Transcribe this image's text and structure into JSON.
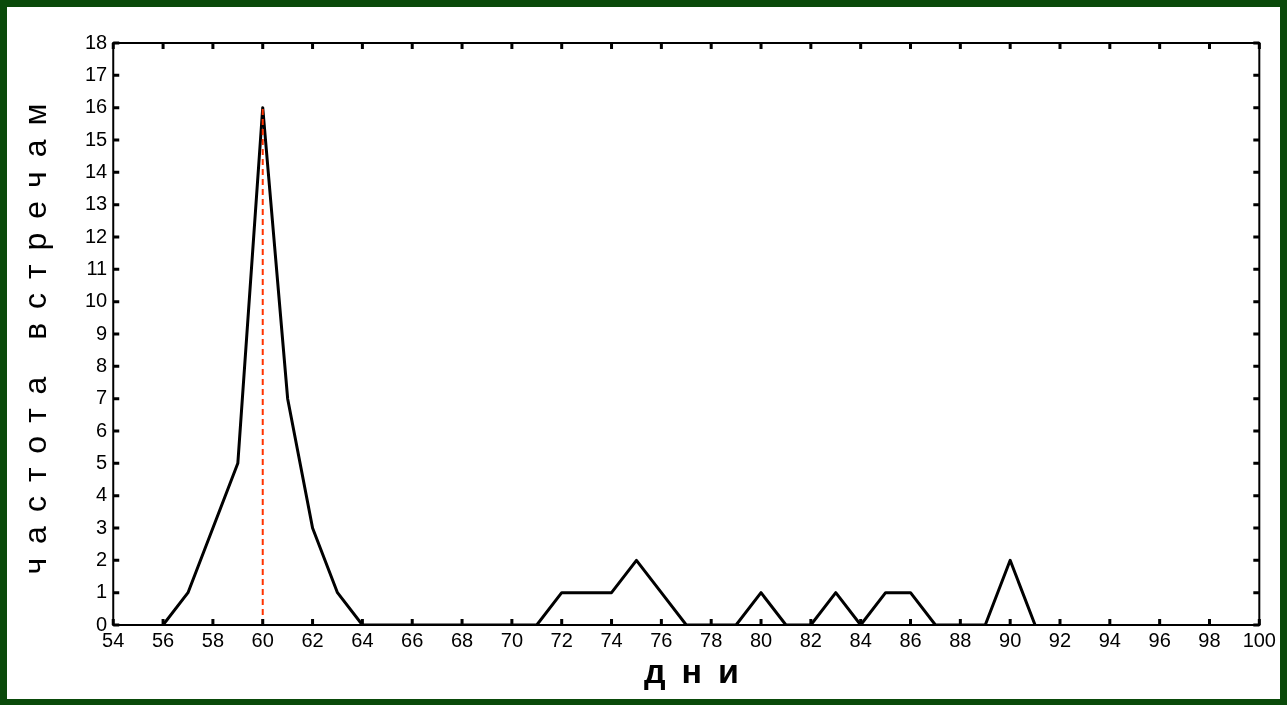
{
  "chart_data": {
    "type": "line",
    "xlabel": "дни",
    "ylabel": "частота встречам",
    "x": [
      56,
      57,
      58,
      59,
      60,
      61,
      62,
      63,
      64,
      65,
      66,
      67,
      68,
      69,
      70,
      71,
      72,
      73,
      74,
      75,
      76,
      77,
      78,
      79,
      80,
      81,
      82,
      83,
      84,
      85,
      86,
      87,
      88,
      89,
      90,
      91
    ],
    "series": [
      {
        "color": "#000000",
        "values": [
          0,
          1,
          3,
          5,
          16,
          7,
          3,
          1,
          0,
          0,
          0,
          0,
          0,
          0,
          0,
          0,
          1,
          1,
          1,
          2,
          1,
          0,
          0,
          0,
          1,
          0,
          0,
          1,
          0,
          1,
          1,
          0,
          0,
          0,
          2,
          0
        ]
      }
    ],
    "xlim": [
      54,
      100
    ],
    "xticks": [
      54,
      56,
      58,
      60,
      62,
      64,
      66,
      68,
      70,
      72,
      74,
      76,
      78,
      80,
      82,
      84,
      86,
      88,
      90,
      92,
      94,
      96,
      98,
      100
    ],
    "ylim": [
      0,
      18
    ],
    "yticks": [
      0,
      1,
      2,
      3,
      4,
      5,
      6,
      7,
      8,
      9,
      10,
      11,
      12,
      13,
      14,
      15,
      16,
      17,
      18
    ],
    "ref_lines": [
      {
        "axis": "x",
        "value": 60,
        "color": "#ff3300",
        "line_style": "dashed"
      }
    ],
    "grid": false,
    "legend": false,
    "marker": "none",
    "line_style": "solid"
  }
}
